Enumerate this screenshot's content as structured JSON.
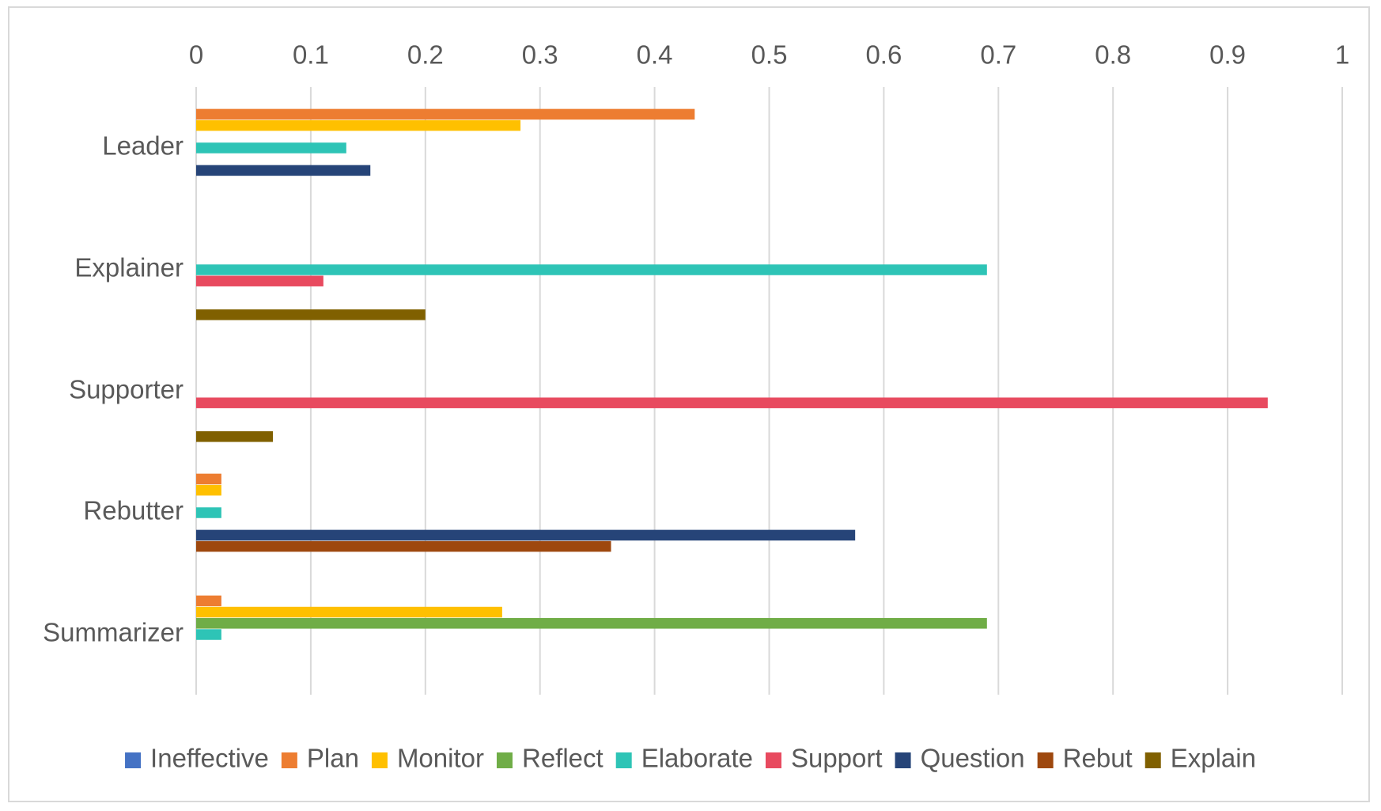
{
  "chart_data": {
    "type": "bar",
    "orientation": "horizontal",
    "title": "",
    "xlabel": "",
    "ylabel": "",
    "xlim": [
      0,
      1
    ],
    "x_ticks": [
      "0",
      "0.1",
      "0.2",
      "0.3",
      "0.4",
      "0.5",
      "0.6",
      "0.7",
      "0.8",
      "0.9",
      "1"
    ],
    "x_axis_position": "top",
    "grid": true,
    "legend_position": "bottom",
    "categories": [
      "Leader",
      "Explainer",
      "Supporter",
      "Rebutter",
      "Summarizer"
    ],
    "series": [
      {
        "name": "Ineffective",
        "color": "#4472C4",
        "values": [
          0,
          0,
          0,
          0,
          0
        ]
      },
      {
        "name": "Plan",
        "color": "#ED7D31",
        "values": [
          0.435,
          0,
          0,
          0.022,
          0.022
        ]
      },
      {
        "name": "Monitor",
        "color": "#FFC000",
        "values": [
          0.283,
          0,
          0,
          0.022,
          0.267
        ]
      },
      {
        "name": "Reflect",
        "color": "#70AD47",
        "values": [
          0,
          0,
          0,
          0,
          0.69
        ]
      },
      {
        "name": "Elaborate",
        "color": "#2EC4B6",
        "values": [
          0.131,
          0.69,
          0,
          0.022,
          0.022
        ]
      },
      {
        "name": "Support",
        "color": "#E84A5F",
        "values": [
          0,
          0.111,
          0.935,
          0,
          0
        ]
      },
      {
        "name": "Question",
        "color": "#264478",
        "values": [
          0.152,
          0,
          0,
          0.575,
          0
        ]
      },
      {
        "name": "Rebut",
        "color": "#9E480E",
        "values": [
          0,
          0,
          0,
          0.362,
          0
        ]
      },
      {
        "name": "Explain",
        "color": "#806000",
        "values": [
          0,
          0.2,
          0.067,
          0,
          0
        ]
      }
    ]
  }
}
